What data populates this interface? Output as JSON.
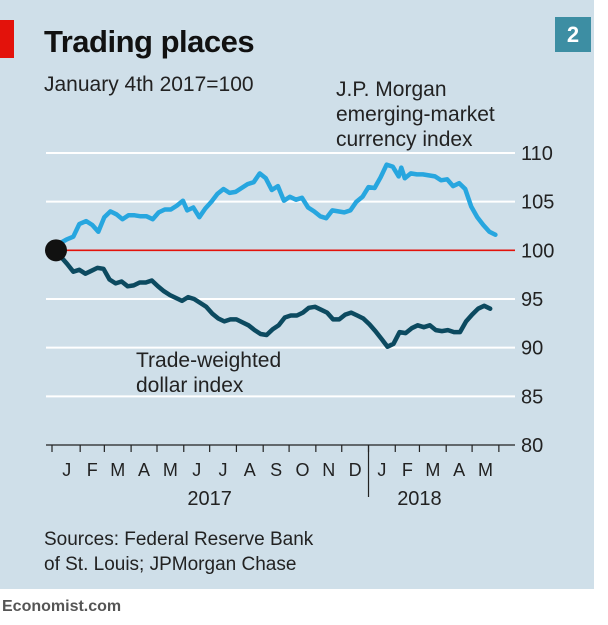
{
  "header": {
    "title": "Trading places",
    "subtitle": "January 4th 2017=100",
    "badge": "2"
  },
  "source": {
    "line1": "Sources: Federal Reserve Bank",
    "line2": "of St. Louis; JPMorgan Chase"
  },
  "footer": "Economist.com",
  "colors": {
    "background": "#cfdfe9",
    "em_series": "#27a6df",
    "dollar_series": "#0c4a60",
    "baseline": "#e3120b",
    "accent": "#e3120b"
  },
  "chart_data": {
    "type": "line",
    "title": "Trading places",
    "subtitle": "January 4th 2017=100",
    "x_range": [
      "2017-01-04",
      "2018-05-31"
    ],
    "ylim": [
      80,
      110
    ],
    "y_ticks": [
      110,
      105,
      100,
      95,
      90,
      85,
      80
    ],
    "y_axis_side": "right",
    "grid": true,
    "baseline_value": 100,
    "start_marker": {
      "date": "2017-01-04",
      "value": 100
    },
    "month_ticks": [
      "J",
      "F",
      "M",
      "A",
      "M",
      "J",
      "J",
      "A",
      "S",
      "O",
      "N",
      "D",
      "J",
      "F",
      "M",
      "A",
      "M"
    ],
    "year_labels": [
      {
        "label": "2017",
        "date": "2017-07-01"
      },
      {
        "label": "2018",
        "date": "2018-03-01"
      }
    ],
    "series": [
      {
        "name": "J.P. Morgan emerging-market currency index",
        "label_lines": [
          "J.P. Morgan",
          "emerging-market",
          "currency index"
        ],
        "color": "#27a6df",
        "points": [
          [
            "2017-01-04",
            100
          ],
          [
            "2017-01-10",
            100.8
          ],
          [
            "2017-01-16",
            101.1
          ],
          [
            "2017-01-24",
            101.4
          ],
          [
            "2017-01-31",
            102.7
          ],
          [
            "2017-02-08",
            103.0
          ],
          [
            "2017-02-15",
            102.6
          ],
          [
            "2017-02-22",
            101.9
          ],
          [
            "2017-03-01",
            103.4
          ],
          [
            "2017-03-08",
            104.0
          ],
          [
            "2017-03-15",
            103.7
          ],
          [
            "2017-03-22",
            103.2
          ],
          [
            "2017-03-29",
            103.6
          ],
          [
            "2017-04-05",
            103.6
          ],
          [
            "2017-04-12",
            103.5
          ],
          [
            "2017-04-19",
            103.5
          ],
          [
            "2017-04-26",
            103.2
          ],
          [
            "2017-05-03",
            103.9
          ],
          [
            "2017-05-10",
            104.2
          ],
          [
            "2017-05-17",
            104.2
          ],
          [
            "2017-05-24",
            104.6
          ],
          [
            "2017-05-31",
            105.1
          ],
          [
            "2017-06-05",
            104.1
          ],
          [
            "2017-06-12",
            104.4
          ],
          [
            "2017-06-19",
            103.4
          ],
          [
            "2017-06-26",
            104.3
          ],
          [
            "2017-07-03",
            105.0
          ],
          [
            "2017-07-10",
            105.8
          ],
          [
            "2017-07-17",
            106.3
          ],
          [
            "2017-07-24",
            105.9
          ],
          [
            "2017-07-31",
            106.0
          ],
          [
            "2017-08-07",
            106.4
          ],
          [
            "2017-08-14",
            106.8
          ],
          [
            "2017-08-21",
            107.0
          ],
          [
            "2017-08-28",
            107.9
          ],
          [
            "2017-09-04",
            107.4
          ],
          [
            "2017-09-11",
            106.2
          ],
          [
            "2017-09-18",
            106.6
          ],
          [
            "2017-09-25",
            105.1
          ],
          [
            "2017-10-02",
            105.5
          ],
          [
            "2017-10-09",
            105.2
          ],
          [
            "2017-10-16",
            105.4
          ],
          [
            "2017-10-23",
            104.4
          ],
          [
            "2017-10-30",
            104.0
          ],
          [
            "2017-11-06",
            103.5
          ],
          [
            "2017-11-13",
            103.3
          ],
          [
            "2017-11-20",
            104.1
          ],
          [
            "2017-11-27",
            104.0
          ],
          [
            "2017-12-04",
            103.9
          ],
          [
            "2017-12-11",
            104.1
          ],
          [
            "2017-12-18",
            105.0
          ],
          [
            "2017-12-25",
            105.5
          ],
          [
            "2018-01-01",
            106.5
          ],
          [
            "2018-01-08",
            106.4
          ],
          [
            "2018-01-15",
            107.5
          ],
          [
            "2018-01-22",
            108.8
          ],
          [
            "2018-01-29",
            108.6
          ],
          [
            "2018-02-05",
            107.6
          ],
          [
            "2018-02-08",
            108.5
          ],
          [
            "2018-02-12",
            107.4
          ],
          [
            "2018-02-19",
            107.9
          ],
          [
            "2018-02-26",
            107.8
          ],
          [
            "2018-03-05",
            107.8
          ],
          [
            "2018-03-12",
            107.7
          ],
          [
            "2018-03-19",
            107.6
          ],
          [
            "2018-03-26",
            107.2
          ],
          [
            "2018-04-02",
            107.3
          ],
          [
            "2018-04-09",
            106.6
          ],
          [
            "2018-04-16",
            106.9
          ],
          [
            "2018-04-23",
            106.3
          ],
          [
            "2018-04-30",
            104.5
          ],
          [
            "2018-05-07",
            103.4
          ],
          [
            "2018-05-14",
            102.6
          ],
          [
            "2018-05-21",
            101.9
          ],
          [
            "2018-05-28",
            101.6
          ]
        ]
      },
      {
        "name": "Trade-weighted dollar index",
        "label_lines": [
          "Trade-weighted",
          "dollar index"
        ],
        "color": "#0c4a60",
        "points": [
          [
            "2017-01-04",
            100
          ],
          [
            "2017-01-10",
            99.3
          ],
          [
            "2017-01-17",
            98.6
          ],
          [
            "2017-01-24",
            97.8
          ],
          [
            "2017-01-31",
            98.0
          ],
          [
            "2017-02-07",
            97.6
          ],
          [
            "2017-02-14",
            97.9
          ],
          [
            "2017-02-21",
            98.2
          ],
          [
            "2017-02-28",
            98.1
          ],
          [
            "2017-03-07",
            97.0
          ],
          [
            "2017-03-14",
            96.6
          ],
          [
            "2017-03-21",
            96.8
          ],
          [
            "2017-03-28",
            96.3
          ],
          [
            "2017-04-04",
            96.4
          ],
          [
            "2017-04-11",
            96.7
          ],
          [
            "2017-04-18",
            96.7
          ],
          [
            "2017-04-25",
            96.9
          ],
          [
            "2017-05-02",
            96.3
          ],
          [
            "2017-05-09",
            95.8
          ],
          [
            "2017-05-16",
            95.4
          ],
          [
            "2017-05-23",
            95.1
          ],
          [
            "2017-05-30",
            94.8
          ],
          [
            "2017-06-06",
            95.2
          ],
          [
            "2017-06-13",
            95.0
          ],
          [
            "2017-06-20",
            94.6
          ],
          [
            "2017-06-27",
            94.2
          ],
          [
            "2017-07-04",
            93.5
          ],
          [
            "2017-07-11",
            93.0
          ],
          [
            "2017-07-18",
            92.7
          ],
          [
            "2017-07-25",
            92.9
          ],
          [
            "2017-08-01",
            92.9
          ],
          [
            "2017-08-08",
            92.6
          ],
          [
            "2017-08-15",
            92.3
          ],
          [
            "2017-08-22",
            91.8
          ],
          [
            "2017-08-29",
            91.4
          ],
          [
            "2017-09-05",
            91.3
          ],
          [
            "2017-09-12",
            91.9
          ],
          [
            "2017-09-19",
            92.3
          ],
          [
            "2017-09-26",
            93.1
          ],
          [
            "2017-10-03",
            93.3
          ],
          [
            "2017-10-10",
            93.3
          ],
          [
            "2017-10-17",
            93.6
          ],
          [
            "2017-10-24",
            94.1
          ],
          [
            "2017-10-31",
            94.2
          ],
          [
            "2017-11-07",
            93.9
          ],
          [
            "2017-11-14",
            93.6
          ],
          [
            "2017-11-21",
            92.9
          ],
          [
            "2017-11-28",
            92.9
          ],
          [
            "2017-12-05",
            93.4
          ],
          [
            "2017-12-12",
            93.6
          ],
          [
            "2017-12-19",
            93.3
          ],
          [
            "2017-12-26",
            93.0
          ],
          [
            "2018-01-02",
            92.4
          ],
          [
            "2018-01-09",
            91.7
          ],
          [
            "2018-01-16",
            90.9
          ],
          [
            "2018-01-23",
            90.1
          ],
          [
            "2018-01-30",
            90.4
          ],
          [
            "2018-02-06",
            91.6
          ],
          [
            "2018-02-13",
            91.5
          ],
          [
            "2018-02-20",
            92.0
          ],
          [
            "2018-02-27",
            92.3
          ],
          [
            "2018-03-06",
            92.1
          ],
          [
            "2018-03-13",
            92.3
          ],
          [
            "2018-03-20",
            91.8
          ],
          [
            "2018-03-27",
            91.7
          ],
          [
            "2018-04-03",
            91.8
          ],
          [
            "2018-04-10",
            91.6
          ],
          [
            "2018-04-17",
            91.6
          ],
          [
            "2018-04-24",
            92.7
          ],
          [
            "2018-05-01",
            93.4
          ],
          [
            "2018-05-08",
            94.0
          ],
          [
            "2018-05-15",
            94.3
          ],
          [
            "2018-05-22",
            94.0
          ]
        ]
      }
    ]
  }
}
